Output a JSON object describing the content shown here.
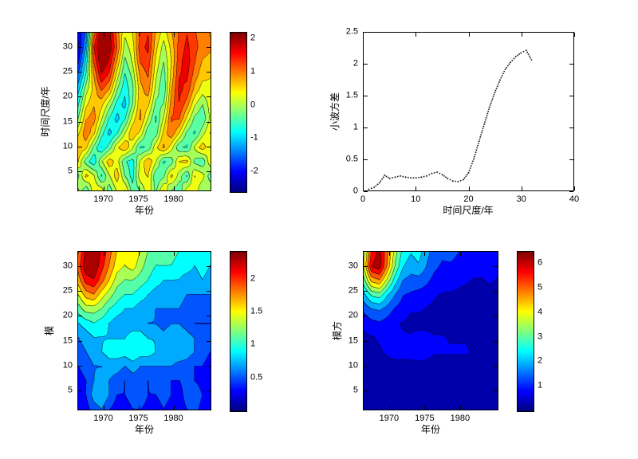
{
  "figure": {
    "background": "#ffffff",
    "axis_color": "#000000"
  },
  "chart_data": [
    {
      "id": "wavelet-real-contour",
      "type": "heatmap",
      "contour": true,
      "colormap": "jet",
      "xlabel": "年份",
      "ylabel": "时间尺度/年",
      "x_ticks": [
        1970,
        1975,
        1980
      ],
      "x_range": [
        1966.3,
        1985.4
      ],
      "y_ticks": [
        5,
        10,
        15,
        20,
        25,
        30
      ],
      "y_range": [
        1,
        33
      ],
      "colorbar_ticks": [
        2,
        1,
        0,
        -1,
        -2
      ],
      "z_range": [
        -2.6,
        2.2
      ],
      "levels": 14,
      "grid": {
        "cols": 18,
        "rows": 12,
        "values": [
          [
            -2.2,
            -1.5,
            1.0,
            2.2,
            2.0,
            1.0,
            0.2,
            0.5,
            1.2,
            1.5,
            0.8,
            0.3,
            0.8,
            1.2,
            1.5,
            1.2,
            1.0,
            0.8
          ],
          [
            -2.3,
            -1.2,
            1.5,
            2.3,
            2.1,
            1.2,
            0.0,
            0.3,
            1.4,
            1.6,
            0.6,
            0.0,
            0.6,
            1.3,
            1.6,
            1.3,
            1.0,
            0.9
          ],
          [
            -2.0,
            -0.8,
            1.2,
            2.2,
            1.8,
            0.8,
            -0.3,
            0.2,
            1.2,
            1.4,
            0.4,
            -0.2,
            0.5,
            1.4,
            1.7,
            1.2,
            0.8,
            0.7
          ],
          [
            -1.5,
            -0.5,
            0.8,
            1.8,
            1.4,
            0.3,
            -0.6,
            -0.1,
            0.9,
            1.2,
            0.2,
            -0.4,
            0.6,
            1.5,
            1.6,
            1.0,
            0.6,
            0.5
          ],
          [
            -1.0,
            0.0,
            0.6,
            1.2,
            0.8,
            -0.2,
            -0.8,
            -0.3,
            0.7,
            1.0,
            0.0,
            -0.5,
            0.8,
            1.6,
            1.4,
            0.7,
            0.3,
            0.4
          ],
          [
            -0.6,
            0.4,
            0.8,
            0.6,
            0.0,
            -0.7,
            -1.0,
            -0.2,
            0.8,
            0.6,
            -0.3,
            -0.2,
            1.0,
            1.5,
            1.0,
            0.2,
            -0.2,
            0.3
          ],
          [
            -0.2,
            0.8,
            1.0,
            0.2,
            -0.6,
            -1.0,
            -0.6,
            0.3,
            0.9,
            0.1,
            -0.6,
            0.2,
            1.2,
            1.2,
            0.4,
            -0.3,
            -0.5,
            0.2
          ],
          [
            0.4,
            1.1,
            0.6,
            -0.4,
            -1.0,
            -0.6,
            0.1,
            0.8,
            0.4,
            -0.5,
            -0.4,
            0.6,
            1.1,
            0.5,
            -0.3,
            -0.6,
            0.0,
            0.5
          ],
          [
            0.8,
            0.6,
            -0.3,
            -0.9,
            -0.4,
            0.4,
            0.8,
            0.2,
            -0.6,
            -0.5,
            0.4,
            0.9,
            0.3,
            -0.5,
            -0.6,
            0.2,
            0.7,
            0.2
          ],
          [
            0.5,
            -0.4,
            -0.8,
            0.1,
            0.7,
            0.3,
            -0.5,
            -0.7,
            0.2,
            0.8,
            0.2,
            -0.6,
            -0.4,
            0.5,
            0.6,
            -0.3,
            -0.5,
            0.4
          ],
          [
            -0.3,
            0.6,
            0.2,
            -0.6,
            0.1,
            0.7,
            -0.2,
            -0.7,
            0.4,
            0.5,
            -0.5,
            -0.3,
            0.6,
            0.0,
            -0.6,
            0.5,
            0.3,
            -0.4
          ],
          [
            0.2,
            -0.5,
            0.4,
            0.3,
            -0.4,
            0.2,
            0.5,
            -0.4,
            -0.2,
            0.4,
            -0.3,
            0.5,
            -0.2,
            -0.5,
            0.3,
            0.4,
            -0.2,
            0.1
          ]
        ]
      }
    },
    {
      "id": "wavelet-variance",
      "type": "line",
      "line_style": "dotted",
      "line_color": "#000000",
      "xlabel": "时间尺度/年",
      "ylabel": "小波方差",
      "x_ticks": [
        0,
        10,
        20,
        30,
        40
      ],
      "y_ticks": [
        0,
        0.5,
        1,
        1.5,
        2,
        2.5
      ],
      "xlim": [
        0,
        40
      ],
      "ylim": [
        0,
        2.5
      ],
      "x": [
        1,
        2,
        3,
        4,
        5,
        6,
        7,
        8,
        9,
        10,
        11,
        12,
        13,
        14,
        15,
        16,
        17,
        18,
        19,
        20,
        21,
        22,
        23,
        24,
        25,
        26,
        27,
        28,
        29,
        30,
        31,
        32
      ],
      "y": [
        0.02,
        0.05,
        0.12,
        0.24,
        0.19,
        0.21,
        0.23,
        0.21,
        0.2,
        0.2,
        0.21,
        0.23,
        0.27,
        0.29,
        0.25,
        0.19,
        0.15,
        0.14,
        0.17,
        0.28,
        0.5,
        0.78,
        1.05,
        1.32,
        1.55,
        1.75,
        1.92,
        2.03,
        2.12,
        2.18,
        2.22,
        2.07
      ]
    },
    {
      "id": "wavelet-modulus-contour",
      "type": "heatmap",
      "contour": true,
      "colormap": "jet",
      "xlabel": "年份",
      "ylabel": "模",
      "x_ticks": [
        1970,
        1975,
        1980
      ],
      "x_range": [
        1966.3,
        1985.4
      ],
      "y_ticks": [
        5,
        10,
        15,
        20,
        25,
        30
      ],
      "y_range": [
        1,
        33
      ],
      "colorbar_ticks": [
        2,
        1.5,
        1,
        0.5
      ],
      "z_range": [
        0,
        2.42
      ],
      "levels": 12,
      "grid": {
        "cols": 18,
        "rows": 12,
        "values": [
          [
            1.8,
            2.3,
            2.4,
            2.2,
            1.9,
            1.6,
            1.5,
            1.6,
            1.4,
            1.2,
            1.1,
            1.2,
            1.1,
            1.0,
            0.9,
            0.9,
            1.0,
            0.9
          ],
          [
            1.9,
            2.4,
            2.4,
            2.1,
            1.8,
            1.5,
            1.4,
            1.5,
            1.3,
            1.1,
            1.0,
            1.0,
            1.0,
            0.9,
            0.9,
            0.8,
            0.9,
            0.8
          ],
          [
            1.7,
            2.1,
            2.2,
            1.9,
            1.6,
            1.3,
            1.2,
            1.2,
            1.1,
            1.0,
            0.9,
            0.8,
            0.8,
            0.8,
            0.7,
            0.7,
            0.8,
            0.7
          ],
          [
            1.4,
            1.7,
            1.8,
            1.5,
            1.3,
            1.1,
            1.0,
            1.0,
            0.9,
            0.8,
            0.7,
            0.7,
            0.7,
            0.7,
            0.6,
            0.6,
            0.6,
            0.6
          ],
          [
            1.1,
            1.3,
            1.3,
            1.2,
            1.0,
            0.9,
            0.8,
            0.8,
            0.7,
            0.7,
            0.6,
            0.6,
            0.6,
            0.6,
            0.5,
            0.5,
            0.5,
            0.5
          ],
          [
            0.8,
            0.9,
            1.0,
            0.9,
            0.8,
            0.7,
            0.7,
            0.7,
            0.7,
            0.6,
            0.6,
            0.5,
            0.6,
            0.6,
            0.5,
            0.4,
            0.4,
            0.4
          ],
          [
            0.6,
            0.7,
            0.8,
            0.8,
            0.8,
            0.8,
            0.8,
            0.9,
            0.9,
            0.8,
            0.8,
            0.7,
            0.8,
            0.8,
            0.7,
            0.6,
            0.5,
            0.5
          ],
          [
            0.5,
            0.6,
            0.7,
            0.8,
            0.9,
            0.9,
            0.9,
            1.0,
            0.9,
            0.9,
            0.8,
            0.8,
            0.8,
            0.8,
            0.7,
            0.6,
            0.5,
            0.4
          ],
          [
            0.4,
            0.5,
            0.6,
            0.6,
            0.7,
            0.7,
            0.6,
            0.7,
            0.6,
            0.6,
            0.6,
            0.6,
            0.6,
            0.5,
            0.5,
            0.4,
            0.4,
            0.3
          ],
          [
            0.3,
            0.4,
            0.6,
            0.7,
            0.6,
            0.5,
            0.4,
            0.5,
            0.5,
            0.4,
            0.5,
            0.5,
            0.4,
            0.4,
            0.5,
            0.4,
            0.3,
            0.3
          ],
          [
            0.3,
            0.4,
            0.7,
            0.8,
            0.6,
            0.4,
            0.4,
            0.5,
            0.6,
            0.4,
            0.4,
            0.5,
            0.4,
            0.3,
            0.5,
            0.6,
            0.4,
            0.3
          ],
          [
            0.2,
            0.3,
            0.5,
            0.6,
            0.4,
            0.3,
            0.3,
            0.4,
            0.4,
            0.3,
            0.3,
            0.4,
            0.3,
            0.3,
            0.4,
            0.5,
            0.3,
            0.2
          ]
        ]
      }
    },
    {
      "id": "wavelet-power-contour",
      "type": "heatmap",
      "contour": true,
      "colormap": "jet",
      "xlabel": "年份",
      "ylabel": "模方",
      "x_ticks": [
        1970,
        1975,
        1980
      ],
      "x_range": [
        1966.3,
        1985.4
      ],
      "y_ticks": [
        5,
        10,
        15,
        20,
        25,
        30
      ],
      "y_range": [
        1,
        33
      ],
      "colorbar_ticks": [
        6,
        5,
        4,
        3,
        2,
        1
      ],
      "z_range": [
        0,
        6.5
      ],
      "levels": 12,
      "grid": {
        "cols": 18,
        "rows": 12,
        "values": [
          [
            3.5,
            5.5,
            6.2,
            5.0,
            3.5,
            2.5,
            2.2,
            2.4,
            1.8,
            1.4,
            1.2,
            1.3,
            1.1,
            1.0,
            0.9,
            0.8,
            0.9,
            0.8
          ],
          [
            3.8,
            6.0,
            6.3,
            4.8,
            3.2,
            2.2,
            1.9,
            2.1,
            1.6,
            1.2,
            1.0,
            1.0,
            0.9,
            0.8,
            0.8,
            0.7,
            0.8,
            0.7
          ],
          [
            3.0,
            4.5,
            4.8,
            3.6,
            2.4,
            1.6,
            1.4,
            1.4,
            1.2,
            0.9,
            0.8,
            0.7,
            0.6,
            0.6,
            0.5,
            0.5,
            0.6,
            0.5
          ],
          [
            2.0,
            2.8,
            3.0,
            2.2,
            1.6,
            1.1,
            1.0,
            0.9,
            0.8,
            0.6,
            0.5,
            0.5,
            0.5,
            0.4,
            0.4,
            0.4,
            0.4,
            0.4
          ],
          [
            1.2,
            1.6,
            1.7,
            1.4,
            1.0,
            0.8,
            0.6,
            0.6,
            0.5,
            0.4,
            0.4,
            0.3,
            0.3,
            0.3,
            0.3,
            0.3,
            0.3,
            0.3
          ],
          [
            0.7,
            0.9,
            1.0,
            0.8,
            0.6,
            0.5,
            0.4,
            0.4,
            0.4,
            0.3,
            0.3,
            0.3,
            0.3,
            0.3,
            0.2,
            0.2,
            0.2,
            0.2
          ],
          [
            0.4,
            0.5,
            0.6,
            0.6,
            0.6,
            0.6,
            0.6,
            0.7,
            0.7,
            0.6,
            0.6,
            0.5,
            0.5,
            0.5,
            0.4,
            0.3,
            0.3,
            0.3
          ],
          [
            0.3,
            0.4,
            0.5,
            0.6,
            0.7,
            0.7,
            0.7,
            0.8,
            0.7,
            0.6,
            0.6,
            0.6,
            0.6,
            0.6,
            0.5,
            0.4,
            0.3,
            0.2
          ],
          [
            0.2,
            0.3,
            0.4,
            0.4,
            0.4,
            0.4,
            0.4,
            0.4,
            0.4,
            0.3,
            0.3,
            0.3,
            0.3,
            0.3,
            0.3,
            0.2,
            0.2,
            0.2
          ],
          [
            0.2,
            0.2,
            0.3,
            0.4,
            0.3,
            0.3,
            0.2,
            0.3,
            0.3,
            0.2,
            0.3,
            0.3,
            0.2,
            0.2,
            0.3,
            0.2,
            0.2,
            0.1
          ],
          [
            0.1,
            0.2,
            0.4,
            0.4,
            0.3,
            0.2,
            0.2,
            0.3,
            0.3,
            0.2,
            0.2,
            0.3,
            0.2,
            0.2,
            0.3,
            0.3,
            0.2,
            0.1
          ],
          [
            0.1,
            0.1,
            0.2,
            0.3,
            0.2,
            0.1,
            0.1,
            0.2,
            0.2,
            0.1,
            0.1,
            0.2,
            0.1,
            0.1,
            0.2,
            0.2,
            0.1,
            0.1
          ]
        ]
      }
    }
  ]
}
